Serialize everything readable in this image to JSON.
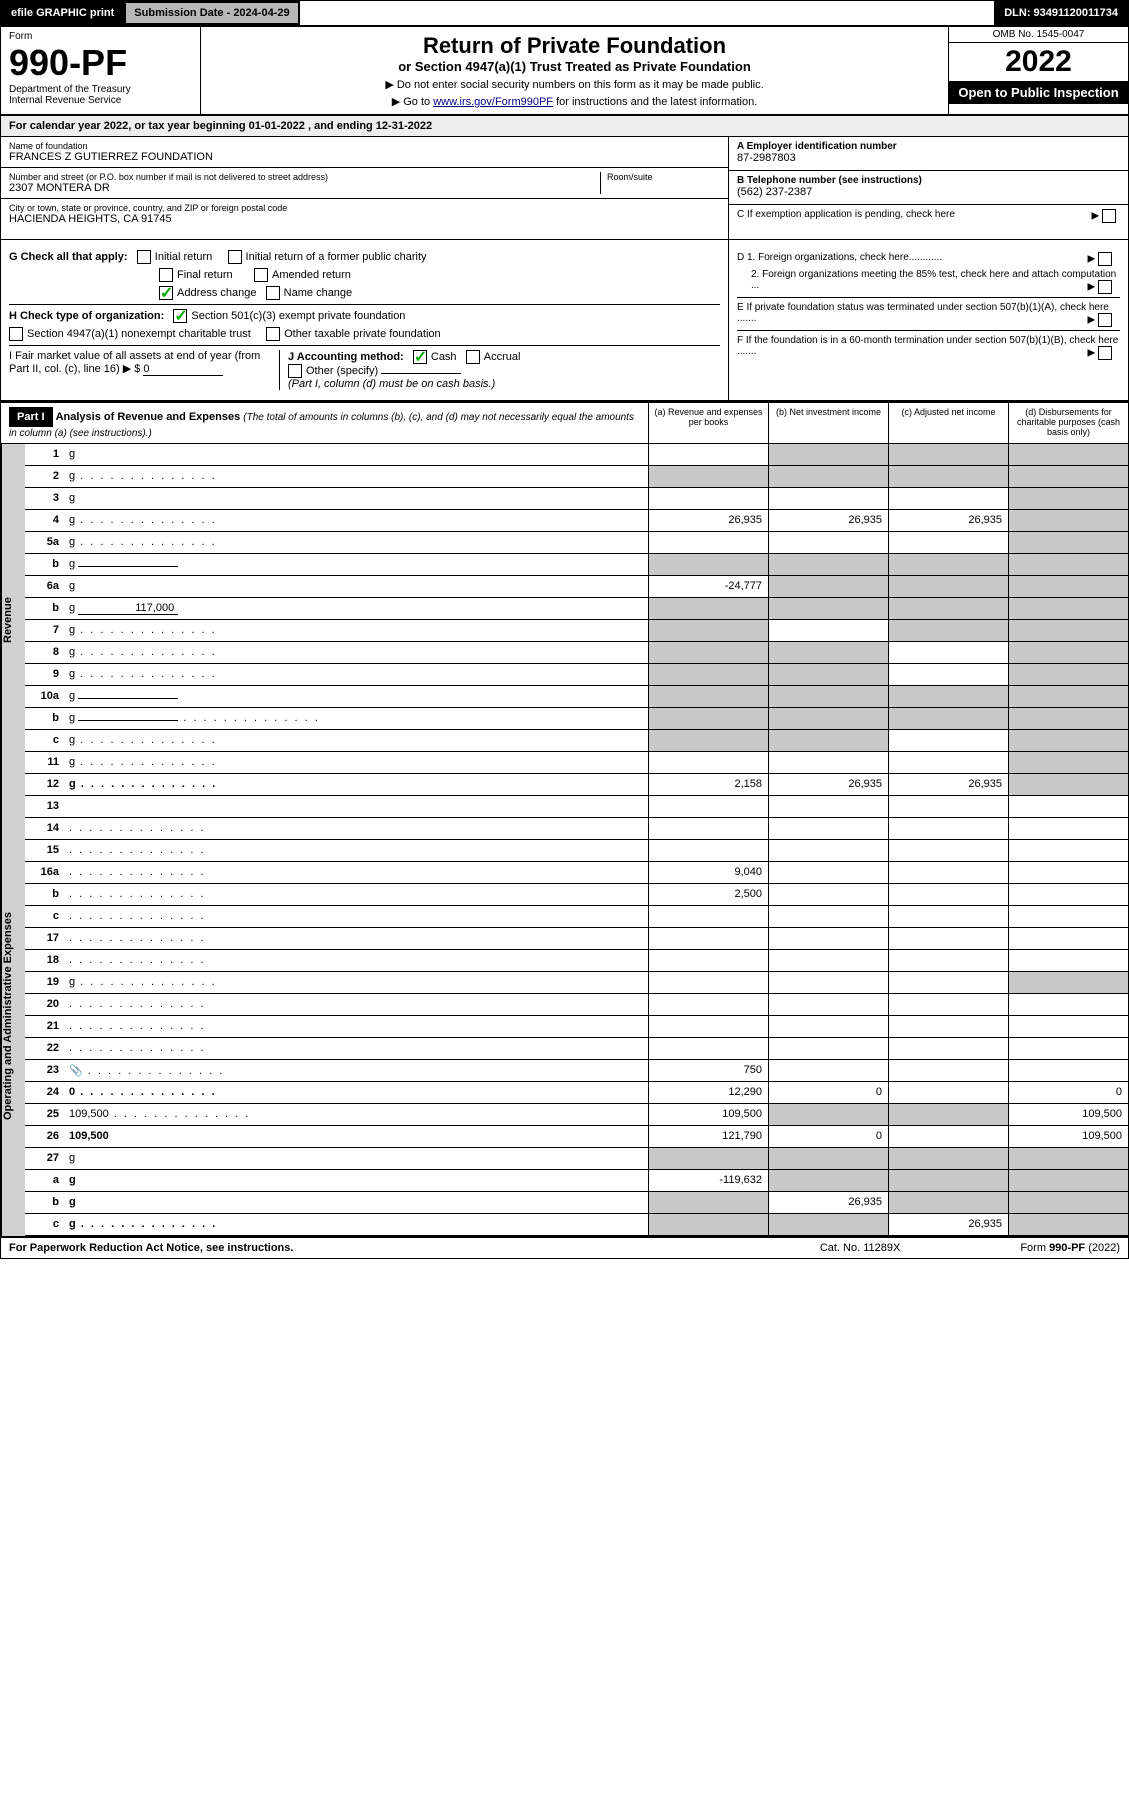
{
  "top": {
    "efile": "efile GRAPHIC print",
    "subdate_lbl": "Submission Date - 2024-04-29",
    "dln": "DLN: 93491120011734"
  },
  "hdr": {
    "form": "Form",
    "num": "990-PF",
    "dept": "Department of the Treasury\nInternal Revenue Service",
    "title": "Return of Private Foundation",
    "sub": "or Section 4947(a)(1) Trust Treated as Private Foundation",
    "note1": "▶ Do not enter social security numbers on this form as it may be made public.",
    "note2": "▶ Go to www.irs.gov/Form990PF for instructions and the latest information.",
    "link": "www.irs.gov/Form990PF",
    "omb": "OMB No. 1545-0047",
    "year": "2022",
    "open": "Open to Public Inspection"
  },
  "cal": "For calendar year 2022, or tax year beginning 01-01-2022                          , and ending 12-31-2022",
  "info": {
    "name_lbl": "Name of foundation",
    "name": "FRANCES Z GUTIERREZ FOUNDATION",
    "addr_lbl": "Number and street (or P.O. box number if mail is not delivered to street address)",
    "addr": "2307 MONTERA DR",
    "room_lbl": "Room/suite",
    "city_lbl": "City or town, state or province, country, and ZIP or foreign postal code",
    "city": "HACIENDA HEIGHTS, CA  91745",
    "ein_lbl": "A Employer identification number",
    "ein": "87-2987803",
    "phone_lbl": "B Telephone number (see instructions)",
    "phone": "(562) 237-2387",
    "c": "C If exemption application is pending, check here",
    "d1": "D 1. Foreign organizations, check here............",
    "d2": "2. Foreign organizations meeting the 85% test, check here and attach computation ...",
    "e": "E  If private foundation status was terminated under section 507(b)(1)(A), check here .......",
    "f": "F  If the foundation is in a 60-month termination under section 507(b)(1)(B), check here ......."
  },
  "g": {
    "lbl": "G Check all that apply:",
    "initial": "Initial return",
    "initial_former": "Initial return of a former public charity",
    "final": "Final return",
    "amended": "Amended return",
    "addr_change": "Address change",
    "name_change": "Name change"
  },
  "h": {
    "lbl": "H Check type of organization:",
    "s501": "Section 501(c)(3) exempt private foundation",
    "s4947": "Section 4947(a)(1) nonexempt charitable trust",
    "other_tax": "Other taxable private foundation"
  },
  "i": {
    "lbl": "I Fair market value of all assets at end of year (from Part II, col. (c), line 16) ▶ $",
    "val": "0"
  },
  "j": {
    "lbl": "J Accounting method:",
    "cash": "Cash",
    "accrual": "Accrual",
    "other": "Other (specify)",
    "note": "(Part I, column (d) must be on cash basis.)"
  },
  "part1": {
    "lbl": "Part I",
    "title": "Analysis of Revenue and Expenses",
    "note": " (The total of amounts in columns (b), (c), and (d) may not necessarily equal the amounts in column (a) (see instructions).)",
    "col_a": "(a)   Revenue and expenses per books",
    "col_b": "(b)   Net investment income",
    "col_c": "(c)   Adjusted net income",
    "col_d": "(d)   Disbursements for charitable purposes (cash basis only)"
  },
  "side_rev": "Revenue",
  "side_exp": "Operating and Administrative Expenses",
  "rows": [
    {
      "n": "1",
      "d": "g",
      "a": "",
      "b": "g",
      "c": "g"
    },
    {
      "n": "2",
      "d": "g",
      "dots": true,
      "a": "g",
      "b": "g",
      "c": "g"
    },
    {
      "n": "3",
      "d": "g",
      "a": "",
      "b": "",
      "c": ""
    },
    {
      "n": "4",
      "d": "g",
      "dots": true,
      "a": "26,935",
      "b": "26,935",
      "c": "26,935"
    },
    {
      "n": "5a",
      "d": "g",
      "dots": true,
      "a": "",
      "b": "",
      "c": ""
    },
    {
      "n": "b",
      "d": "g",
      "inline": "",
      "a": "g",
      "b": "g",
      "c": "g"
    },
    {
      "n": "6a",
      "d": "g",
      "a": "-24,777",
      "b": "g",
      "c": "g"
    },
    {
      "n": "b",
      "d": "g",
      "inline": "117,000",
      "a": "g",
      "b": "g",
      "c": "g"
    },
    {
      "n": "7",
      "d": "g",
      "dots": true,
      "a": "g",
      "b": "",
      "c": "g"
    },
    {
      "n": "8",
      "d": "g",
      "dots": true,
      "a": "g",
      "b": "g",
      "c": ""
    },
    {
      "n": "9",
      "d": "g",
      "dots": true,
      "a": "g",
      "b": "g",
      "c": ""
    },
    {
      "n": "10a",
      "d": "g",
      "inline": "",
      "a": "g",
      "b": "g",
      "c": "g"
    },
    {
      "n": "b",
      "d": "g",
      "dots": true,
      "inline": "",
      "a": "g",
      "b": "g",
      "c": "g"
    },
    {
      "n": "c",
      "d": "g",
      "dots": true,
      "a": "g",
      "b": "g",
      "c": ""
    },
    {
      "n": "11",
      "d": "g",
      "dots": true,
      "a": "",
      "b": "",
      "c": ""
    },
    {
      "n": "12",
      "d": "g",
      "bold": true,
      "dots": true,
      "a": "2,158",
      "b": "26,935",
      "c": "26,935"
    }
  ],
  "exp_rows": [
    {
      "n": "13",
      "d": "",
      "a": "",
      "b": "",
      "c": ""
    },
    {
      "n": "14",
      "d": "",
      "dots": true,
      "a": "",
      "b": "",
      "c": ""
    },
    {
      "n": "15",
      "d": "",
      "dots": true,
      "a": "",
      "b": "",
      "c": ""
    },
    {
      "n": "16a",
      "d": "",
      "dots": true,
      "a": "9,040",
      "b": "",
      "c": ""
    },
    {
      "n": "b",
      "d": "",
      "dots": true,
      "a": "2,500",
      "b": "",
      "c": ""
    },
    {
      "n": "c",
      "d": "",
      "dots": true,
      "a": "",
      "b": "",
      "c": ""
    },
    {
      "n": "17",
      "d": "",
      "dots": true,
      "a": "",
      "b": "",
      "c": ""
    },
    {
      "n": "18",
      "d": "",
      "dots": true,
      "a": "",
      "b": "",
      "c": ""
    },
    {
      "n": "19",
      "d": "g",
      "dots": true,
      "a": "",
      "b": "",
      "c": ""
    },
    {
      "n": "20",
      "d": "",
      "dots": true,
      "a": "",
      "b": "",
      "c": ""
    },
    {
      "n": "21",
      "d": "",
      "dots": true,
      "a": "",
      "b": "",
      "c": ""
    },
    {
      "n": "22",
      "d": "",
      "dots": true,
      "a": "",
      "b": "",
      "c": ""
    },
    {
      "n": "23",
      "d": "",
      "dots": true,
      "icon": true,
      "a": "750",
      "b": "",
      "c": ""
    },
    {
      "n": "24",
      "d": "0",
      "bold": true,
      "dots": true,
      "a": "12,290",
      "b": "0",
      "c": ""
    },
    {
      "n": "25",
      "d": "109,500",
      "dots": true,
      "a": "109,500",
      "b": "g",
      "c": "g"
    },
    {
      "n": "26",
      "d": "109,500",
      "bold": true,
      "a": "121,790",
      "b": "0",
      "c": ""
    },
    {
      "n": "27",
      "d": "g",
      "a": "g",
      "b": "g",
      "c": "g"
    },
    {
      "n": "a",
      "d": "g",
      "bold": true,
      "a": "-119,632",
      "b": "g",
      "c": "g"
    },
    {
      "n": "b",
      "d": "g",
      "bold": true,
      "a": "g",
      "b": "26,935",
      "c": "g"
    },
    {
      "n": "c",
      "d": "g",
      "bold": true,
      "dots": true,
      "a": "g",
      "b": "g",
      "c": "26,935"
    }
  ],
  "footer": {
    "l": "For Paperwork Reduction Act Notice, see instructions.",
    "c": "Cat. No. 11289X",
    "r": "Form 990-PF (2022)"
  }
}
